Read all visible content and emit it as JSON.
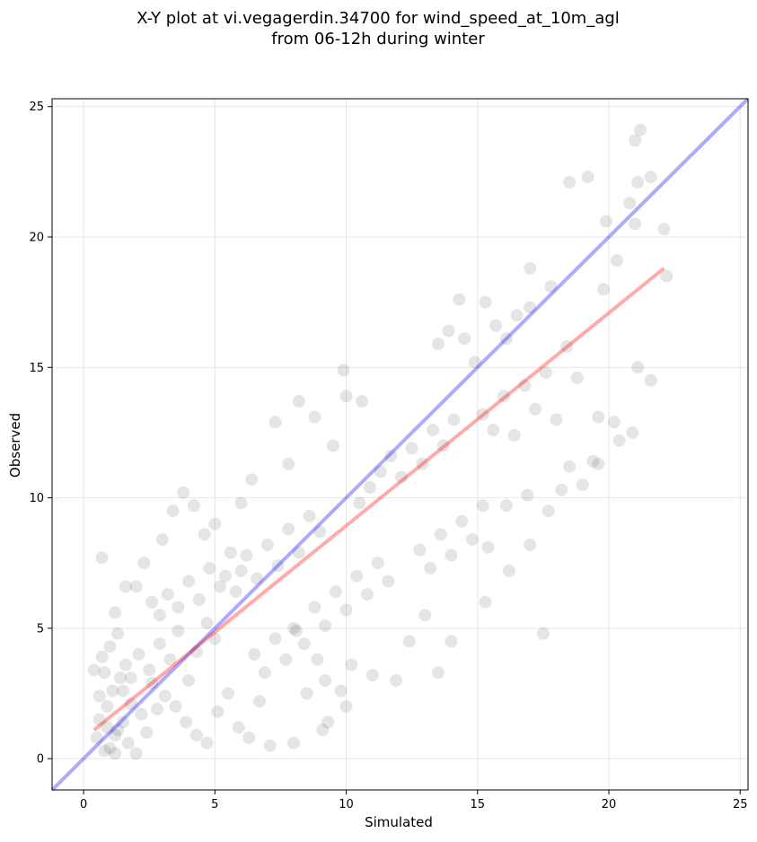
{
  "chart_data": {
    "type": "scatter",
    "title": "X-Y plot at vi.vegagerdin.34700 for wind_speed_at_10m_agl",
    "subtitle": "from 06-12h during winter",
    "xlabel": "Simulated",
    "ylabel": "Observed",
    "xlim": [
      -1.2,
      25.3
    ],
    "ylim": [
      -1.2,
      25.3
    ],
    "xticks": [
      0,
      5,
      10,
      15,
      20,
      25
    ],
    "yticks": [
      0,
      5,
      10,
      15,
      20,
      25
    ],
    "grid": true,
    "marker_color": "#000000",
    "marker_opacity": 0.1,
    "series": [
      {
        "values": [
          [
            0.7,
            7.7
          ],
          [
            1.0,
            0.4
          ],
          [
            1.2,
            0.9
          ],
          [
            1.5,
            1.4
          ],
          [
            1.8,
            2.1
          ],
          [
            2.2,
            1.7
          ],
          [
            2.6,
            2.9
          ],
          [
            0.8,
            3.3
          ],
          [
            1.1,
            2.6
          ],
          [
            1.4,
            3.1
          ],
          [
            0.6,
            1.5
          ],
          [
            0.9,
            2.0
          ],
          [
            1.3,
            1.1
          ],
          [
            1.7,
            0.6
          ],
          [
            2.0,
            0.2
          ],
          [
            2.4,
            1.0
          ],
          [
            2.8,
            1.9
          ],
          [
            3.1,
            2.4
          ],
          [
            0.5,
            0.8
          ],
          [
            0.8,
            0.3
          ],
          [
            1.6,
            3.6
          ],
          [
            2.1,
            4.0
          ],
          [
            2.5,
            3.4
          ],
          [
            2.9,
            4.4
          ],
          [
            3.3,
            3.8
          ],
          [
            3.6,
            4.9
          ],
          [
            4.0,
            3.0
          ],
          [
            4.3,
            4.1
          ],
          [
            4.7,
            5.2
          ],
          [
            5.0,
            4.6
          ],
          [
            1.2,
            5.6
          ],
          [
            1.6,
            6.6
          ],
          [
            2.0,
            6.6
          ],
          [
            2.3,
            7.5
          ],
          [
            3.0,
            8.4
          ],
          [
            3.4,
            9.5
          ],
          [
            3.8,
            10.2
          ],
          [
            4.2,
            9.7
          ],
          [
            4.6,
            8.6
          ],
          [
            5.0,
            9.0
          ],
          [
            3.5,
            2.0
          ],
          [
            3.9,
            1.4
          ],
          [
            4.3,
            0.9
          ],
          [
            4.7,
            0.6
          ],
          [
            5.1,
            1.8
          ],
          [
            5.5,
            2.5
          ],
          [
            5.9,
            1.2
          ],
          [
            6.3,
            0.8
          ],
          [
            6.7,
            2.2
          ],
          [
            7.1,
            0.5
          ],
          [
            5.4,
            7.0
          ],
          [
            5.8,
            6.4
          ],
          [
            6.2,
            7.8
          ],
          [
            6.6,
            6.9
          ],
          [
            7.0,
            8.2
          ],
          [
            7.4,
            7.4
          ],
          [
            7.8,
            8.8
          ],
          [
            8.2,
            7.9
          ],
          [
            8.6,
            9.3
          ],
          [
            9.0,
            8.7
          ],
          [
            6.0,
            9.8
          ],
          [
            6.4,
            10.7
          ],
          [
            7.3,
            12.9
          ],
          [
            7.8,
            11.3
          ],
          [
            8.2,
            13.7
          ],
          [
            8.8,
            13.1
          ],
          [
            9.5,
            12.0
          ],
          [
            9.9,
            14.9
          ],
          [
            10.0,
            13.9
          ],
          [
            10.6,
            13.7
          ],
          [
            8.0,
            5.0
          ],
          [
            8.4,
            4.4
          ],
          [
            8.8,
            5.8
          ],
          [
            9.2,
            5.1
          ],
          [
            9.6,
            6.4
          ],
          [
            10.0,
            5.7
          ],
          [
            10.4,
            7.0
          ],
          [
            10.8,
            6.3
          ],
          [
            11.2,
            7.5
          ],
          [
            11.6,
            6.8
          ],
          [
            9.2,
            3.0
          ],
          [
            9.8,
            2.6
          ],
          [
            10.2,
            3.6
          ],
          [
            10.0,
            2.0
          ],
          [
            11.0,
            3.2
          ],
          [
            11.9,
            3.0
          ],
          [
            12.4,
            4.5
          ],
          [
            13.0,
            5.5
          ],
          [
            13.5,
            3.3
          ],
          [
            14.0,
            4.5
          ],
          [
            10.5,
            9.8
          ],
          [
            10.9,
            10.4
          ],
          [
            11.3,
            11.0
          ],
          [
            11.7,
            11.6
          ],
          [
            12.1,
            10.8
          ],
          [
            12.5,
            11.9
          ],
          [
            12.9,
            11.3
          ],
          [
            13.3,
            12.6
          ],
          [
            13.7,
            12.0
          ],
          [
            14.1,
            13.0
          ],
          [
            12.8,
            8.0
          ],
          [
            13.2,
            7.3
          ],
          [
            13.6,
            8.6
          ],
          [
            14.0,
            7.8
          ],
          [
            14.4,
            9.1
          ],
          [
            14.8,
            8.4
          ],
          [
            15.2,
            9.7
          ],
          [
            15.4,
            8.1
          ],
          [
            16.1,
            9.7
          ],
          [
            16.2,
            7.2
          ],
          [
            13.5,
            15.9
          ],
          [
            13.9,
            16.4
          ],
          [
            14.3,
            17.6
          ],
          [
            14.5,
            16.1
          ],
          [
            14.9,
            15.2
          ],
          [
            15.3,
            17.5
          ],
          [
            15.7,
            16.6
          ],
          [
            16.1,
            16.1
          ],
          [
            16.5,
            17.0
          ],
          [
            17.0,
            17.3
          ],
          [
            15.2,
            13.2
          ],
          [
            15.6,
            12.6
          ],
          [
            16.0,
            13.9
          ],
          [
            16.4,
            12.4
          ],
          [
            16.8,
            14.3
          ],
          [
            17.2,
            13.4
          ],
          [
            17.6,
            14.8
          ],
          [
            18.0,
            13.0
          ],
          [
            18.4,
            15.8
          ],
          [
            18.8,
            14.6
          ],
          [
            15.3,
            6.0
          ],
          [
            16.9,
            10.1
          ],
          [
            17.0,
            8.2
          ],
          [
            17.5,
            4.8
          ],
          [
            17.7,
            9.5
          ],
          [
            18.2,
            10.3
          ],
          [
            18.5,
            11.2
          ],
          [
            19.0,
            10.5
          ],
          [
            19.4,
            11.4
          ],
          [
            19.6,
            11.3
          ],
          [
            17.0,
            18.8
          ],
          [
            17.8,
            18.1
          ],
          [
            18.5,
            22.1
          ],
          [
            19.2,
            22.3
          ],
          [
            19.8,
            18.0
          ],
          [
            19.9,
            20.6
          ],
          [
            20.3,
            19.1
          ],
          [
            20.8,
            21.3
          ],
          [
            21.0,
            20.5
          ],
          [
            21.1,
            22.1
          ],
          [
            19.6,
            13.1
          ],
          [
            20.2,
            12.9
          ],
          [
            20.4,
            12.2
          ],
          [
            20.9,
            12.5
          ],
          [
            21.1,
            15.0
          ],
          [
            21.6,
            14.5
          ],
          [
            21.0,
            23.7
          ],
          [
            21.2,
            24.1
          ],
          [
            21.6,
            22.3
          ],
          [
            22.1,
            20.3
          ],
          [
            22.2,
            18.5
          ],
          [
            0.4,
            3.4
          ],
          [
            0.7,
            3.9
          ],
          [
            1.0,
            4.3
          ],
          [
            1.3,
            4.8
          ],
          [
            0.6,
            2.4
          ],
          [
            0.9,
            1.2
          ],
          [
            1.2,
            0.2
          ],
          [
            1.5,
            2.6
          ],
          [
            1.8,
            3.1
          ],
          [
            2.6,
            6.0
          ],
          [
            2.9,
            5.5
          ],
          [
            3.2,
            6.3
          ],
          [
            3.6,
            5.8
          ],
          [
            4.0,
            6.8
          ],
          [
            4.4,
            6.1
          ],
          [
            4.8,
            7.3
          ],
          [
            5.2,
            6.6
          ],
          [
            5.6,
            7.9
          ],
          [
            6.0,
            7.2
          ],
          [
            6.5,
            4.0
          ],
          [
            6.9,
            3.3
          ],
          [
            7.3,
            4.6
          ],
          [
            7.7,
            3.8
          ],
          [
            8.1,
            4.9
          ],
          [
            8.5,
            2.5
          ],
          [
            8.9,
            3.8
          ],
          [
            9.1,
            1.1
          ],
          [
            9.3,
            1.4
          ],
          [
            8.0,
            0.6
          ]
        ]
      }
    ],
    "lines": [
      {
        "name": "",
        "color": "#0000ff",
        "opacity": 0.33,
        "x": [
          -1.2,
          25.3
        ],
        "y": [
          -1.2,
          25.3
        ]
      },
      {
        "name": "",
        "color": "#ff0000",
        "opacity": 0.33,
        "x": [
          0.4,
          22.1
        ],
        "y": [
          1.1,
          18.8
        ]
      }
    ]
  }
}
